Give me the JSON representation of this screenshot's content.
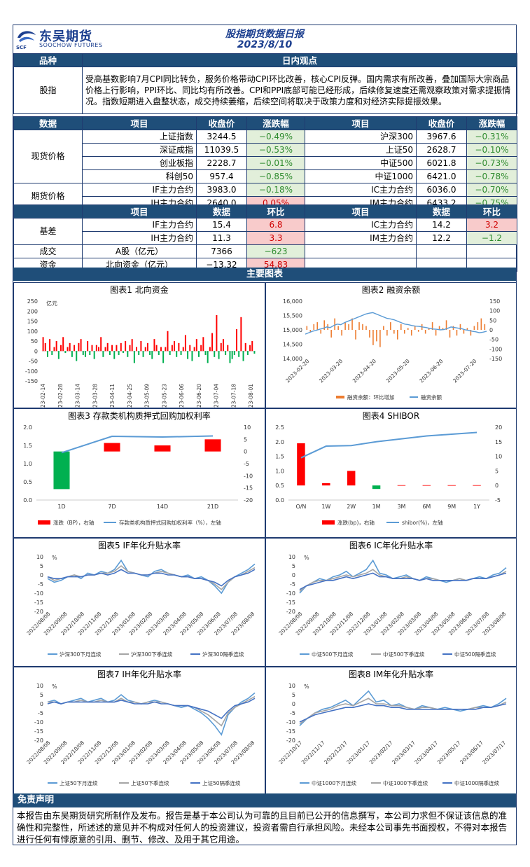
{
  "header": {
    "logo_cn": "东吴期货",
    "logo_en": "SOOCHOW FUTURES",
    "logo_mark": "SCF",
    "title": "股指期货数据日报",
    "date": "2023/8/10"
  },
  "view": {
    "col_label": "品种",
    "col_title": "日内观点",
    "row_label": "股指",
    "text": "受高基数影响7月CPI同比转负，服务价格带动CPI环比改善，核心CPI反弹。国内需求有所改善，叠加国际大宗商品价格上行影响，PPI环比、同比均有所改善。CPI和PPI底部可能已经形成，后续修复速度还需观察政策对需求提振情况。指数短期进入盘整状态，成交持续萎缩，后续空间将取决于政策力度和对经济实际提振效果。"
  },
  "price_table": {
    "headers": [
      "数据",
      "项目",
      "收盘价",
      "涨跌幅",
      "项目",
      "收盘价",
      "涨跌幅"
    ],
    "spot_label": "现货价格",
    "futures_label": "期货价格",
    "spot_rows": [
      [
        "上证指数",
        "3244.5",
        "−0.49%",
        "沪深300",
        "3967.6",
        "−0.31%"
      ],
      [
        "深证成指",
        "11039.5",
        "−0.53%",
        "上证50",
        "2628.7",
        "−0.10%"
      ],
      [
        "创业板指",
        "2228.7",
        "−0.01%",
        "中证500",
        "6021.8",
        "−0.73%"
      ],
      [
        "科创50",
        "957.4",
        "−0.85%",
        "中证1000",
        "6421.0",
        "−0.78%"
      ]
    ],
    "futures_rows": [
      [
        "IF主力合约",
        "3983.0",
        "−0.18%",
        "IC主力合约",
        "6036.0",
        "−0.70%"
      ],
      [
        "IH主力合约",
        "2640.0",
        "0.05%",
        "IM主力合约",
        "6433.2",
        "−0.75%"
      ]
    ]
  },
  "basis_table": {
    "headers": [
      "项目",
      "数据",
      "环比",
      "项目",
      "数据",
      "环比"
    ],
    "basis_label": "基差",
    "rows": [
      [
        "IF主力合约",
        "15.4",
        "6.8",
        "IC主力合约",
        "14.2",
        "3.2"
      ],
      [
        "IH主力合约",
        "11.3",
        "3.3",
        "IM主力合约",
        "12.2",
        "−1.2"
      ]
    ],
    "volume_label": "成交",
    "volume": [
      "A股（亿元）",
      "7366",
      "−623"
    ],
    "fund_label": "资金",
    "fund": [
      "北向资金（亿元）",
      "−13.32",
      "54.83"
    ]
  },
  "charts_title": "主要图表",
  "colors": {
    "navy": "#1f4e79",
    "red": "#ff0000",
    "green": "#00b050",
    "blue": "#5b9bd5",
    "orange": "#ed7d31",
    "gray": "#a5a5a5",
    "darkblue": "#4472c4"
  },
  "chart_data": [
    {
      "type": "bar",
      "title": "图表1  北向资金",
      "ylabel": "亿元",
      "ylim": [
        -150,
        250
      ],
      "yticks": [
        250,
        200,
        150,
        100,
        50,
        0,
        -50,
        -100,
        -150
      ],
      "x_tick_labels": [
        "2023-02-14",
        "2023-02-28",
        "2023-03-14",
        "2023-03-28",
        "2023-04-11",
        "2023-04-25",
        "2023-05-09",
        "2023-05-23",
        "2023-06-06",
        "2023-06-20",
        "2023-07-04",
        "2023-07-18",
        "2023-08-01"
      ],
      "values": [
        70,
        40,
        -30,
        60,
        -20,
        20,
        50,
        -40,
        30,
        70,
        -10,
        20,
        40,
        -30,
        30,
        -50,
        40,
        60,
        -20,
        -30,
        50,
        -20,
        30,
        -40,
        30,
        20,
        70,
        -30,
        20,
        40,
        -20,
        30,
        -40,
        30,
        -20,
        40,
        -10,
        50,
        -30,
        30,
        60,
        -60,
        20,
        -20,
        50,
        -30,
        20,
        40,
        -20,
        -40,
        60,
        30,
        -20,
        20,
        -60,
        20,
        100,
        -20,
        30,
        50,
        -30,
        40,
        -20,
        20,
        80,
        -40,
        30,
        -50,
        20,
        60,
        -30,
        30,
        70,
        -20,
        -60,
        20,
        90,
        -30,
        180,
        -40,
        40,
        60,
        -20,
        30,
        -60,
        -40,
        -20,
        110,
        -30,
        170,
        -50,
        40,
        -20,
        30,
        50,
        -13
      ]
    },
    {
      "type": "bar+line",
      "title": "图表2  融资余额",
      "ylim_left": [
        14000,
        16000
      ],
      "yticks_left": [
        "16,000",
        "15,500",
        "15,000",
        "14,500",
        "14,000"
      ],
      "ylim_right": [
        -150,
        150
      ],
      "yticks_right": [
        150,
        100,
        50,
        0,
        -50,
        -100,
        -150
      ],
      "x_tick_labels": [
        "2023-02-20",
        "2023-03-20",
        "2023-04-20",
        "2023-05-20",
        "2023-06-20",
        "2023-07-20"
      ],
      "legend": [
        "融资余额：环比增加",
        "融资余额"
      ],
      "balance": [
        14850,
        14900,
        14950,
        14980,
        15020,
        15050,
        15100,
        15080,
        15150,
        15200,
        15180,
        15250,
        15300,
        15350,
        15400,
        15450,
        15500,
        15550,
        15580,
        15600,
        15550,
        15500,
        15450,
        15400,
        15380,
        15350,
        15300,
        15250,
        15200,
        15180,
        15150,
        15130,
        15120,
        15100,
        15080,
        15050,
        15030,
        15020,
        15000,
        15010,
        15050,
        15100,
        15080,
        15060,
        15040,
        15000,
        14980,
        14950,
        14930,
        14900,
        14920,
        14950
      ],
      "changes": [
        20,
        -10,
        30,
        40,
        -20,
        50,
        30,
        -40,
        60,
        20,
        -30,
        40,
        30,
        60,
        -50,
        40,
        30,
        20,
        -40,
        -80,
        -60,
        -90,
        20,
        -30,
        40,
        -20,
        -50,
        30,
        -20,
        10,
        -30,
        20,
        -10,
        30,
        -20,
        10,
        40,
        -30,
        20,
        10,
        50,
        -40,
        20,
        -30,
        30,
        -20,
        10,
        -30,
        20,
        40,
        60,
        30
      ]
    },
    {
      "type": "bar+line",
      "title": "图表3  存款类机构质押式回购加权利率",
      "categories": [
        "1D",
        "7D",
        "14D",
        "21D"
      ],
      "ylim_left": [
        0,
        2
      ],
      "yticks_left": [
        "2.0",
        "1.5",
        "1.0",
        "0.5",
        "0.0"
      ],
      "ylim_right": [
        -20,
        10
      ],
      "yticks_right": [
        10,
        5,
        0,
        -5,
        -10,
        -15,
        -20
      ],
      "bp_change": [
        -15.5,
        3.5,
        2.5,
        5
      ],
      "rate": [
        1.3,
        1.75,
        1.73,
        1.76
      ],
      "legend": [
        "涨跌（BP），右轴",
        "存款类机构质押式回购加权利率（%），左轴"
      ]
    },
    {
      "type": "bar+line",
      "title": "图表4  SHIBOR",
      "categories": [
        "O/N",
        "1W",
        "2W",
        "1M",
        "3M",
        "6M",
        "9M",
        "1Y"
      ],
      "ylim_left": [
        0,
        2.5
      ],
      "yticks_left": [
        "2.5",
        "2.0",
        "1.5",
        "1.0",
        "0.5",
        "0.0"
      ],
      "ylim_right": [
        -5,
        20
      ],
      "yticks_right": [
        20,
        15,
        10,
        5,
        0,
        -5
      ],
      "bp_change": [
        14.5,
        0.8,
        5,
        -1.2,
        0.1,
        0.1,
        0.1,
        0.1
      ],
      "rate": [
        1.45,
        1.85,
        1.87,
        2.0,
        2.1,
        2.2,
        2.26,
        2.32
      ],
      "legend": [
        "涨跌(bp)，右轴",
        "shibor(%)，左轴"
      ]
    },
    {
      "type": "line",
      "title": "图表5  IF年化升贴水率",
      "ylabel": "%",
      "ylim": [
        -20,
        10
      ],
      "yticks": [
        10,
        5,
        0,
        -5,
        -10,
        -15,
        -20
      ],
      "x_tick_labels": [
        "2022/08/08",
        "2022/09/08",
        "2022/10/08",
        "2022/11/08",
        "2022/12/08",
        "2023/01/08",
        "2023/02/08",
        "2023/03/08",
        "2023/04/08",
        "2023/05/08",
        "2023/06/08",
        "2023/07/08",
        "2023/08/08"
      ],
      "series": [
        {
          "name": "沪深300下月连续",
          "values": [
            -2,
            -4,
            -3,
            -1,
            0,
            -2,
            1,
            0,
            2,
            1,
            3,
            8,
            2,
            1,
            0,
            -1,
            2,
            3,
            1,
            0,
            -1,
            0,
            -2,
            -1,
            -3,
            -6,
            -10,
            -4,
            -1,
            1,
            3,
            6
          ]
        },
        {
          "name": "沪深300下季连续",
          "values": [
            -1,
            -3,
            -2,
            -1,
            0,
            -1,
            0,
            0,
            1,
            1,
            2,
            5,
            2,
            1,
            0,
            0,
            1,
            2,
            1,
            0,
            -1,
            -1,
            -2,
            -2,
            -3,
            -5,
            -8,
            -4,
            -1,
            0,
            2,
            4
          ]
        },
        {
          "name": "沪深300隔季连续",
          "values": [
            -1,
            -2,
            -2,
            -1,
            -1,
            -1,
            0,
            0,
            1,
            0,
            1,
            3,
            1,
            1,
            0,
            0,
            1,
            1,
            0,
            0,
            -1,
            -1,
            -2,
            -2,
            -3,
            -4,
            -6,
            -3,
            -1,
            0,
            1,
            3
          ]
        }
      ]
    },
    {
      "type": "line",
      "title": "图表6  IC年化升贴水率",
      "ylabel": "%",
      "ylim": [
        -20,
        10
      ],
      "yticks": [
        10,
        5,
        0,
        -5,
        -10,
        -15,
        -20
      ],
      "x_tick_labels": [
        "2022/08/08",
        "2022/09/08",
        "2022/10/08",
        "2022/11/08",
        "2022/12/08",
        "2023/01/08",
        "2023/02/08",
        "2023/03/08",
        "2023/04/08",
        "2023/05/08",
        "2023/06/08",
        "2023/07/08",
        "2023/08/08"
      ],
      "series": [
        {
          "name": "中证500下月连续",
          "values": [
            -10,
            -6,
            -4,
            -2,
            -3,
            -1,
            0,
            2,
            -1,
            1,
            3,
            8,
            1,
            0,
            -2,
            -1,
            0,
            -2,
            -3,
            -1,
            -2,
            -3,
            -4,
            -3,
            -2,
            -3,
            -2,
            -1,
            -2,
            0,
            1,
            4
          ]
        },
        {
          "name": "中证500下季连续",
          "values": [
            -9,
            -6,
            -4,
            -3,
            -3,
            -2,
            -1,
            0,
            -1,
            0,
            1,
            3,
            0,
            -1,
            -2,
            -2,
            -1,
            -2,
            -3,
            -2,
            -2,
            -3,
            -3,
            -3,
            -2,
            -3,
            -2,
            -2,
            -2,
            -1,
            0,
            2
          ]
        },
        {
          "name": "中证500隔季连续",
          "values": [
            -8,
            -6,
            -5,
            -4,
            -3,
            -3,
            -2,
            -1,
            -2,
            -1,
            0,
            1,
            -1,
            -1,
            -2,
            -2,
            -2,
            -2,
            -3,
            -2,
            -3,
            -3,
            -3,
            -3,
            -3,
            -3,
            -2,
            -2,
            -2,
            -1,
            0,
            1
          ]
        }
      ]
    },
    {
      "type": "line",
      "title": "图表7  IH年化升贴水率",
      "ylabel": "%",
      "ylim": [
        -20,
        10
      ],
      "yticks": [
        10,
        5,
        0,
        -5,
        -10,
        -15,
        -20
      ],
      "x_tick_labels": [
        "2022/08/08",
        "2022/09/08",
        "2022/10/08",
        "2022/11/08",
        "2022/12/08",
        "2023/01/08",
        "2023/02/08",
        "2023/03/08",
        "2023/04/08",
        "2023/05/08",
        "2023/06/08",
        "2023/07/08",
        "2023/08/08"
      ],
      "series": [
        {
          "name": "上证50下月连续",
          "values": [
            1,
            2,
            0,
            1,
            2,
            3,
            1,
            2,
            3,
            1,
            2,
            5,
            2,
            1,
            0,
            1,
            2,
            1,
            0,
            -1,
            -2,
            -1,
            -3,
            -5,
            -8,
            -12,
            -17,
            -6,
            -2,
            1,
            3,
            6
          ]
        },
        {
          "name": "上证50下季连续",
          "values": [
            1,
            1,
            0,
            1,
            1,
            2,
            1,
            1,
            2,
            1,
            1,
            3,
            1,
            1,
            0,
            1,
            1,
            1,
            0,
            -1,
            -1,
            -1,
            -2,
            -4,
            -6,
            -9,
            -12,
            -5,
            -2,
            0,
            2,
            4
          ]
        },
        {
          "name": "上证50隔季连续",
          "values": [
            0,
            1,
            0,
            1,
            1,
            1,
            1,
            1,
            1,
            1,
            1,
            2,
            1,
            0,
            0,
            0,
            1,
            0,
            0,
            -1,
            -1,
            -1,
            -2,
            -3,
            -4,
            -6,
            -8,
            -4,
            -1,
            0,
            1,
            3
          ]
        }
      ]
    },
    {
      "type": "line",
      "title": "图表8  IM年化升贴水率",
      "ylabel": "%",
      "ylim": [
        -20,
        10
      ],
      "yticks": [
        10,
        5,
        0,
        -5,
        -10,
        -15,
        -20
      ],
      "x_tick_labels": [
        "2022/10/17",
        "2022/11/17",
        "2022/12/17",
        "2023/01/17",
        "2023/02/17",
        "2023/03/17",
        "2023/04/17",
        "2023/05/17",
        "2023/06/17",
        "2023/07/17"
      ],
      "series": [
        {
          "name": "中证1000下月连续",
          "values": [
            -12,
            -8,
            -5,
            -3,
            -2,
            0,
            2,
            -1,
            3,
            7,
            1,
            2,
            -1,
            0,
            -2,
            -3,
            -1,
            -2,
            -3,
            -2,
            -3,
            -4,
            -3,
            -2,
            -1,
            -2,
            0,
            3
          ]
        },
        {
          "name": "中证1000下季连续",
          "values": [
            -11,
            -8,
            -5,
            -4,
            -3,
            -1,
            0,
            -1,
            1,
            3,
            0,
            0,
            -1,
            -1,
            -2,
            -3,
            -2,
            -2,
            -3,
            -3,
            -3,
            -3,
            -3,
            -2,
            -2,
            -2,
            -1,
            1
          ]
        },
        {
          "name": "中证1000隔季连续",
          "values": [
            -10,
            -8,
            -6,
            -5,
            -4,
            -3,
            -2,
            -2,
            -1,
            0,
            -1,
            -1,
            -2,
            -2,
            -3,
            -3,
            -3,
            -3,
            -3,
            -3,
            -3,
            -3,
            -3,
            -3,
            -2,
            -2,
            -1,
            0
          ]
        }
      ]
    }
  ],
  "disclaimer": {
    "title": "免责声明",
    "text": "本报告由东吴期货研究所制作及发布。报告是基于本公司认为可靠的且目前已公开的信息撰写，本公司力求但不保证该信息的准确性和完整性，所述述的意见并不构成对任何人的投资建议，投资者需自行承担风险。未经本公司事先书面授权，不得对本报告进行任何有悖原意的引用、删节、修改、及用于其它用途。"
  }
}
